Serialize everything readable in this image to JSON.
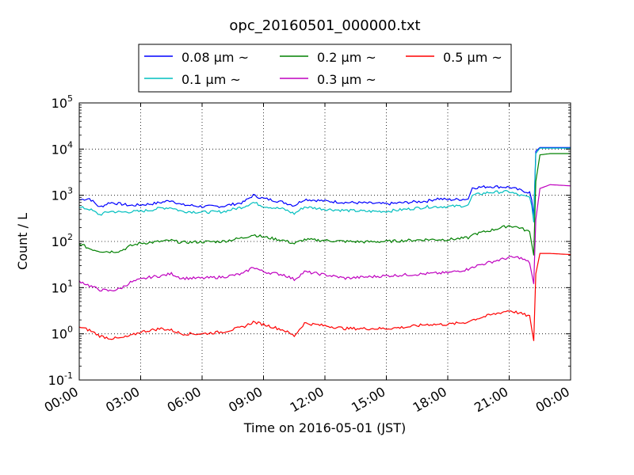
{
  "chart_data": {
    "type": "line",
    "title": "opc_20160501_000000.txt",
    "xlabel": "Time on 2016-05-01 (JST)",
    "ylabel": "Count / L",
    "x_unit": "hours",
    "xlim": [
      0,
      24
    ],
    "x_ticks": [
      0,
      3,
      6,
      9,
      12,
      15,
      18,
      21,
      24
    ],
    "x_tick_labels": [
      "00:00",
      "03:00",
      "06:00",
      "09:00",
      "12:00",
      "15:00",
      "18:00",
      "21:00",
      "00:00"
    ],
    "y_scale": "log",
    "ylim": [
      0.1,
      100000
    ],
    "y_ticks": [
      0.1,
      1,
      10,
      100,
      1000,
      10000,
      100000
    ],
    "y_tick_labels": [
      {
        "base": "10",
        "exp": "-1"
      },
      {
        "base": "10",
        "exp": "0"
      },
      {
        "base": "10",
        "exp": "1"
      },
      {
        "base": "10",
        "exp": "2"
      },
      {
        "base": "10",
        "exp": "3"
      },
      {
        "base": "10",
        "exp": "4"
      },
      {
        "base": "10",
        "exp": "5"
      }
    ],
    "grid": true,
    "legend_placement": "top-center",
    "series": [
      {
        "name": "0.08 μm ~",
        "color": "#0000ff",
        "points": [
          [
            0,
            800
          ],
          [
            0.5,
            850
          ],
          [
            1,
            550
          ],
          [
            1.5,
            700
          ],
          [
            2,
            650
          ],
          [
            2.5,
            600
          ],
          [
            3,
            620
          ],
          [
            3.5,
            650
          ],
          [
            4,
            700
          ],
          [
            4.5,
            780
          ],
          [
            5,
            620
          ],
          [
            5.5,
            600
          ],
          [
            6,
            570
          ],
          [
            7,
            580
          ],
          [
            8,
            700
          ],
          [
            8.5,
            1000
          ],
          [
            9,
            850
          ],
          [
            9.5,
            780
          ],
          [
            10,
            700
          ],
          [
            10.5,
            600
          ],
          [
            11,
            820
          ],
          [
            12,
            750
          ],
          [
            13,
            700
          ],
          [
            14,
            680
          ],
          [
            15,
            650
          ],
          [
            16,
            700
          ],
          [
            17,
            750
          ],
          [
            17.5,
            850
          ],
          [
            18,
            800
          ],
          [
            19,
            830
          ],
          [
            19.2,
            1450
          ],
          [
            20,
            1550
          ],
          [
            21,
            1500
          ],
          [
            21.5,
            1300
          ],
          [
            22,
            1150
          ],
          [
            22.1,
            800
          ],
          [
            22.2,
            350
          ],
          [
            22.3,
            9000
          ],
          [
            22.5,
            10800
          ],
          [
            23,
            10800
          ],
          [
            24,
            10800
          ]
        ]
      },
      {
        "name": "0.1 μm ~",
        "color": "#00bfbf",
        "points": [
          [
            0,
            550
          ],
          [
            0.5,
            500
          ],
          [
            1,
            380
          ],
          [
            1.5,
            450
          ],
          [
            2,
            430
          ],
          [
            2.5,
            440
          ],
          [
            3,
            450
          ],
          [
            3.5,
            480
          ],
          [
            4,
            530
          ],
          [
            4.5,
            540
          ],
          [
            5,
            450
          ],
          [
            6,
            430
          ],
          [
            7,
            440
          ],
          [
            8,
            560
          ],
          [
            8.5,
            700
          ],
          [
            9,
            580
          ],
          [
            10,
            500
          ],
          [
            10.5,
            400
          ],
          [
            11,
            560
          ],
          [
            12,
            500
          ],
          [
            13,
            470
          ],
          [
            14,
            450
          ],
          [
            15,
            450
          ],
          [
            16,
            500
          ],
          [
            17,
            560
          ],
          [
            18,
            570
          ],
          [
            19,
            600
          ],
          [
            19.2,
            1000
          ],
          [
            20,
            1150
          ],
          [
            21,
            1200
          ],
          [
            21.5,
            1000
          ],
          [
            22,
            900
          ],
          [
            22.1,
            600
          ],
          [
            22.2,
            260
          ],
          [
            22.3,
            8000
          ],
          [
            22.5,
            10500
          ],
          [
            23,
            10500
          ],
          [
            24,
            10500
          ]
        ]
      },
      {
        "name": "0.2 μm ~",
        "color": "#008000",
        "points": [
          [
            0,
            90
          ],
          [
            0.5,
            70
          ],
          [
            1,
            62
          ],
          [
            1.5,
            60
          ],
          [
            2,
            62
          ],
          [
            2.5,
            80
          ],
          [
            3,
            92
          ],
          [
            3.5,
            95
          ],
          [
            4,
            100
          ],
          [
            4.5,
            105
          ],
          [
            5,
            95
          ],
          [
            6,
            98
          ],
          [
            7,
            100
          ],
          [
            8,
            120
          ],
          [
            8.5,
            140
          ],
          [
            9,
            125
          ],
          [
            10,
            105
          ],
          [
            10.5,
            90
          ],
          [
            11,
            110
          ],
          [
            12,
            105
          ],
          [
            13,
            100
          ],
          [
            14,
            98
          ],
          [
            15,
            100
          ],
          [
            16,
            105
          ],
          [
            17,
            110
          ],
          [
            18,
            110
          ],
          [
            19,
            120
          ],
          [
            19.2,
            140
          ],
          [
            20,
            170
          ],
          [
            21,
            220
          ],
          [
            21.5,
            200
          ],
          [
            22,
            160
          ],
          [
            22.2,
            50
          ],
          [
            22.3,
            2000
          ],
          [
            22.5,
            7500
          ],
          [
            23,
            8000
          ],
          [
            24,
            8000
          ]
        ]
      },
      {
        "name": "0.3 μm ~",
        "color": "#bf00bf",
        "points": [
          [
            0,
            14
          ],
          [
            0.5,
            11
          ],
          [
            1,
            9
          ],
          [
            1.5,
            8.5
          ],
          [
            2,
            9.5
          ],
          [
            2.5,
            13
          ],
          [
            3,
            15
          ],
          [
            3.5,
            17
          ],
          [
            4,
            18
          ],
          [
            4.5,
            20
          ],
          [
            5,
            16
          ],
          [
            6,
            16
          ],
          [
            7,
            17
          ],
          [
            8,
            20
          ],
          [
            8.5,
            28
          ],
          [
            9,
            22
          ],
          [
            10,
            19
          ],
          [
            10.5,
            15
          ],
          [
            11,
            22
          ],
          [
            12,
            19
          ],
          [
            13,
            16
          ],
          [
            14,
            17
          ],
          [
            15,
            18
          ],
          [
            16,
            19
          ],
          [
            17,
            20
          ],
          [
            18,
            21
          ],
          [
            19,
            25
          ],
          [
            19.2,
            28
          ],
          [
            20,
            35
          ],
          [
            21,
            45
          ],
          [
            21.5,
            45
          ],
          [
            22,
            35
          ],
          [
            22.2,
            12
          ],
          [
            22.3,
            300
          ],
          [
            22.5,
            1400
          ],
          [
            23,
            1700
          ],
          [
            24,
            1600
          ]
        ]
      },
      {
        "name": "0.5 μm ~",
        "color": "#ff0000",
        "points": [
          [
            0,
            1.4
          ],
          [
            0.5,
            1.2
          ],
          [
            1,
            0.9
          ],
          [
            1.5,
            0.8
          ],
          [
            2,
            0.8
          ],
          [
            2.5,
            0.9
          ],
          [
            3,
            1.1
          ],
          [
            3.5,
            1.2
          ],
          [
            4,
            1.3
          ],
          [
            4.5,
            1.2
          ],
          [
            5,
            1.0
          ],
          [
            6,
            1.0
          ],
          [
            7,
            1.1
          ],
          [
            8,
            1.4
          ],
          [
            8.5,
            1.8
          ],
          [
            9,
            1.6
          ],
          [
            10,
            1.2
          ],
          [
            10.5,
            0.9
          ],
          [
            11,
            1.7
          ],
          [
            12,
            1.5
          ],
          [
            13,
            1.3
          ],
          [
            14,
            1.3
          ],
          [
            15,
            1.3
          ],
          [
            16,
            1.4
          ],
          [
            17,
            1.6
          ],
          [
            18,
            1.6
          ],
          [
            19,
            1.8
          ],
          [
            19.2,
            2.0
          ],
          [
            20,
            2.5
          ],
          [
            21,
            3.2
          ],
          [
            21.5,
            2.8
          ],
          [
            22,
            2.4
          ],
          [
            22.2,
            0.7
          ],
          [
            22.3,
            20
          ],
          [
            22.5,
            55
          ],
          [
            23,
            55
          ],
          [
            24,
            52
          ]
        ]
      }
    ]
  }
}
